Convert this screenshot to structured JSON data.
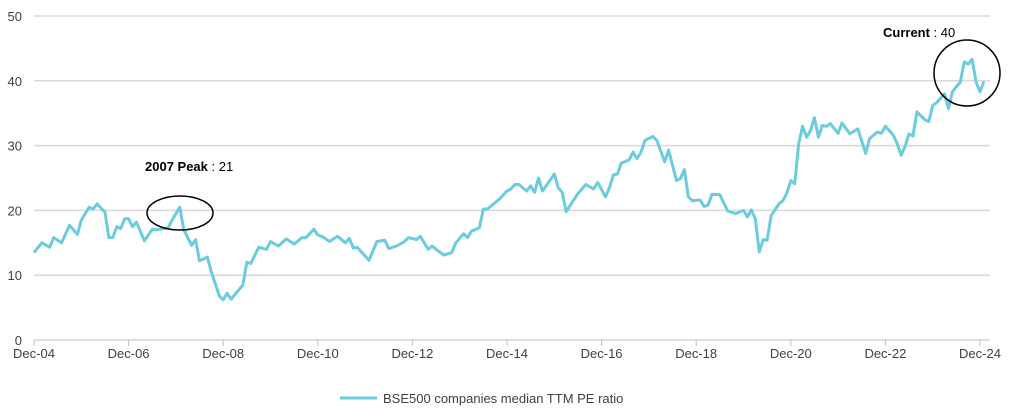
{
  "chart_data": {
    "type": "line",
    "title": "",
    "xlabel": "",
    "ylabel": "",
    "ylim": [
      0,
      50
    ],
    "yticks": [
      0,
      10,
      20,
      30,
      40,
      50
    ],
    "grid": "horizontal",
    "legend_position": "bottom",
    "xticks": [
      {
        "date": "2004-12",
        "label": "Dec-04"
      },
      {
        "date": "2006-12",
        "label": "Dec-06"
      },
      {
        "date": "2008-12",
        "label": "Dec-08"
      },
      {
        "date": "2010-12",
        "label": "Dec-10"
      },
      {
        "date": "2012-12",
        "label": "Dec-12"
      },
      {
        "date": "2014-12",
        "label": "Dec-14"
      },
      {
        "date": "2016-12",
        "label": "Dec-16"
      },
      {
        "date": "2018-12",
        "label": "Dec-18"
      },
      {
        "date": "2020-12",
        "label": "Dec-20"
      },
      {
        "date": "2022-12",
        "label": "Dec-22"
      },
      {
        "date": "2024-12",
        "label": "Dec-24"
      }
    ],
    "series": [
      {
        "name": "BSE500 companies median TTM PE ratio",
        "color": "#6CCBDC",
        "points": [
          [
            "2004-12",
            13.5
          ],
          [
            "2005-02",
            15
          ],
          [
            "2005-04",
            14.3
          ],
          [
            "2005-05",
            15.8
          ],
          [
            "2005-07",
            15
          ],
          [
            "2005-09",
            17.7
          ],
          [
            "2005-11",
            16.3
          ],
          [
            "2005-12",
            18.5
          ],
          [
            "2006-02",
            20.5
          ],
          [
            "2006-03",
            20.2
          ],
          [
            "2006-04",
            21
          ],
          [
            "2006-06",
            19.7
          ],
          [
            "2006-07",
            15.8
          ],
          [
            "2006-08",
            15.8
          ],
          [
            "2006-09",
            17.5
          ],
          [
            "2006-10",
            17.2
          ],
          [
            "2006-11",
            18.7
          ],
          [
            "2006-12",
            18.7
          ],
          [
            "2007-01",
            17.5
          ],
          [
            "2007-02",
            18.2
          ],
          [
            "2007-04",
            15.3
          ],
          [
            "2007-06",
            17.1
          ],
          [
            "2007-07",
            17
          ],
          [
            "2007-10",
            17.3
          ],
          [
            "2007-11",
            18.5
          ],
          [
            "2008-01",
            20.5
          ],
          [
            "2008-02",
            17
          ],
          [
            "2008-04",
            14.6
          ],
          [
            "2008-05",
            15.5
          ],
          [
            "2008-06",
            12.2
          ],
          [
            "2008-08",
            12.8
          ],
          [
            "2008-09",
            10.5
          ],
          [
            "2008-11",
            6.8
          ],
          [
            "2008-12",
            6.2
          ],
          [
            "2009-01",
            7.2
          ],
          [
            "2009-02",
            6.3
          ],
          [
            "2009-05",
            8.5
          ],
          [
            "2009-06",
            12
          ],
          [
            "2009-07",
            11.8
          ],
          [
            "2009-09",
            14.3
          ],
          [
            "2009-11",
            14
          ],
          [
            "2009-12",
            15.2
          ],
          [
            "2010-02",
            14.5
          ],
          [
            "2010-04",
            15.6
          ],
          [
            "2010-06",
            14.8
          ],
          [
            "2010-08",
            15.8
          ],
          [
            "2010-09",
            15.8
          ],
          [
            "2010-11",
            17.1
          ],
          [
            "2010-12",
            16.2
          ],
          [
            "2011-01",
            16
          ],
          [
            "2011-03",
            15.2
          ],
          [
            "2011-05",
            16
          ],
          [
            "2011-07",
            15
          ],
          [
            "2011-08",
            15.7
          ],
          [
            "2011-09",
            14.2
          ],
          [
            "2011-10",
            14.3
          ],
          [
            "2012-01",
            12.3
          ],
          [
            "2012-03",
            15.2
          ],
          [
            "2012-05",
            15.4
          ],
          [
            "2012-06",
            14.1
          ],
          [
            "2012-08",
            14.5
          ],
          [
            "2012-10",
            15.2
          ],
          [
            "2012-11",
            15.8
          ],
          [
            "2013-01",
            15.5
          ],
          [
            "2013-02",
            16
          ],
          [
            "2013-04",
            14
          ],
          [
            "2013-05",
            14.5
          ],
          [
            "2013-06",
            14
          ],
          [
            "2013-08",
            13.1
          ],
          [
            "2013-10",
            13.5
          ],
          [
            "2013-11",
            15
          ],
          [
            "2014-01",
            16.4
          ],
          [
            "2014-02",
            15.8
          ],
          [
            "2014-03",
            16.8
          ],
          [
            "2014-05",
            17.3
          ],
          [
            "2014-06",
            20.2
          ],
          [
            "2014-07",
            20.2
          ],
          [
            "2014-09",
            21.2
          ],
          [
            "2014-10",
            21.7
          ],
          [
            "2014-12",
            23
          ],
          [
            "2015-01",
            23.3
          ],
          [
            "2015-02",
            24
          ],
          [
            "2015-03",
            24
          ],
          [
            "2015-05",
            23
          ],
          [
            "2015-06",
            23.8
          ],
          [
            "2015-07",
            22.8
          ],
          [
            "2015-08",
            25
          ],
          [
            "2015-09",
            23
          ],
          [
            "2015-12",
            25.6
          ],
          [
            "2016-01",
            23.5
          ],
          [
            "2016-02",
            22.8
          ],
          [
            "2016-03",
            19.8
          ],
          [
            "2016-06",
            22.6
          ],
          [
            "2016-07",
            23.3
          ],
          [
            "2016-08",
            24
          ],
          [
            "2016-10",
            23.3
          ],
          [
            "2016-11",
            24.3
          ],
          [
            "2017-01",
            22.1
          ],
          [
            "2017-02",
            23.5
          ],
          [
            "2017-03",
            25.5
          ],
          [
            "2017-04",
            25.6
          ],
          [
            "2017-05",
            27.3
          ],
          [
            "2017-07",
            27.8
          ],
          [
            "2017-08",
            29
          ],
          [
            "2017-09",
            28
          ],
          [
            "2017-10",
            29
          ],
          [
            "2017-11",
            30.8
          ],
          [
            "2018-01",
            31.4
          ],
          [
            "2018-02",
            30.8
          ],
          [
            "2018-04",
            27.5
          ],
          [
            "2018-05",
            29.3
          ],
          [
            "2018-07",
            24.6
          ],
          [
            "2018-08",
            24.9
          ],
          [
            "2018-09",
            26.3
          ],
          [
            "2018-10",
            22.1
          ],
          [
            "2018-11",
            21.5
          ],
          [
            "2019-01",
            21.6
          ],
          [
            "2019-02",
            20.6
          ],
          [
            "2019-03",
            20.8
          ],
          [
            "2019-04",
            22.5
          ],
          [
            "2019-06",
            22.4
          ],
          [
            "2019-08",
            19.9
          ],
          [
            "2019-10",
            19.5
          ],
          [
            "2019-12",
            20
          ],
          [
            "2020-01",
            19
          ],
          [
            "2020-02",
            20.1
          ],
          [
            "2020-03",
            18.7
          ],
          [
            "2020-04",
            13.6
          ],
          [
            "2020-05",
            15.5
          ],
          [
            "2020-06",
            15.4
          ],
          [
            "2020-07",
            19.2
          ],
          [
            "2020-09",
            21
          ],
          [
            "2020-10",
            21.5
          ],
          [
            "2020-11",
            22.7
          ],
          [
            "2020-12",
            24.6
          ],
          [
            "2021-01",
            24.1
          ],
          [
            "2021-02",
            30.3
          ],
          [
            "2021-03",
            33
          ],
          [
            "2021-04",
            31.3
          ],
          [
            "2021-05",
            32.3
          ],
          [
            "2021-06",
            34.3
          ],
          [
            "2021-07",
            31.3
          ],
          [
            "2021-08",
            33.1
          ],
          [
            "2021-09",
            33
          ],
          [
            "2021-10",
            33.4
          ],
          [
            "2021-12",
            31.9
          ],
          [
            "2022-01",
            33.5
          ],
          [
            "2022-03",
            31.8
          ],
          [
            "2022-05",
            32.6
          ],
          [
            "2022-07",
            28.8
          ],
          [
            "2022-08",
            31.1
          ],
          [
            "2022-10",
            32.1
          ],
          [
            "2022-11",
            31.9
          ],
          [
            "2022-12",
            33
          ],
          [
            "2023-02",
            31.6
          ],
          [
            "2023-03",
            30.3
          ],
          [
            "2023-04",
            28.5
          ],
          [
            "2023-05",
            29.9
          ],
          [
            "2023-06",
            31.8
          ],
          [
            "2023-07",
            31.5
          ],
          [
            "2023-08",
            35.2
          ],
          [
            "2023-10",
            34
          ],
          [
            "2023-11",
            33.7
          ],
          [
            "2023-12",
            36.2
          ],
          [
            "2024-01",
            36.6
          ],
          [
            "2024-03",
            38
          ],
          [
            "2024-04",
            35.7
          ],
          [
            "2024-05",
            38.3
          ],
          [
            "2024-06",
            39.1
          ],
          [
            "2024-07",
            39.8
          ],
          [
            "2024-08",
            42.9
          ],
          [
            "2024-09",
            42.6
          ],
          [
            "2024-10",
            43.3
          ],
          [
            "2024-11",
            39.8
          ],
          [
            "2024-12",
            38.3
          ],
          [
            "2025-01",
            39.9
          ]
        ]
      }
    ],
    "annotations": [
      {
        "bold": "2007 Peak",
        "text": " : 21",
        "date": "2008-01",
        "value": 20.5
      },
      {
        "bold": "Current",
        "text": " : 40",
        "date": "2024-08",
        "value": 40
      }
    ]
  }
}
